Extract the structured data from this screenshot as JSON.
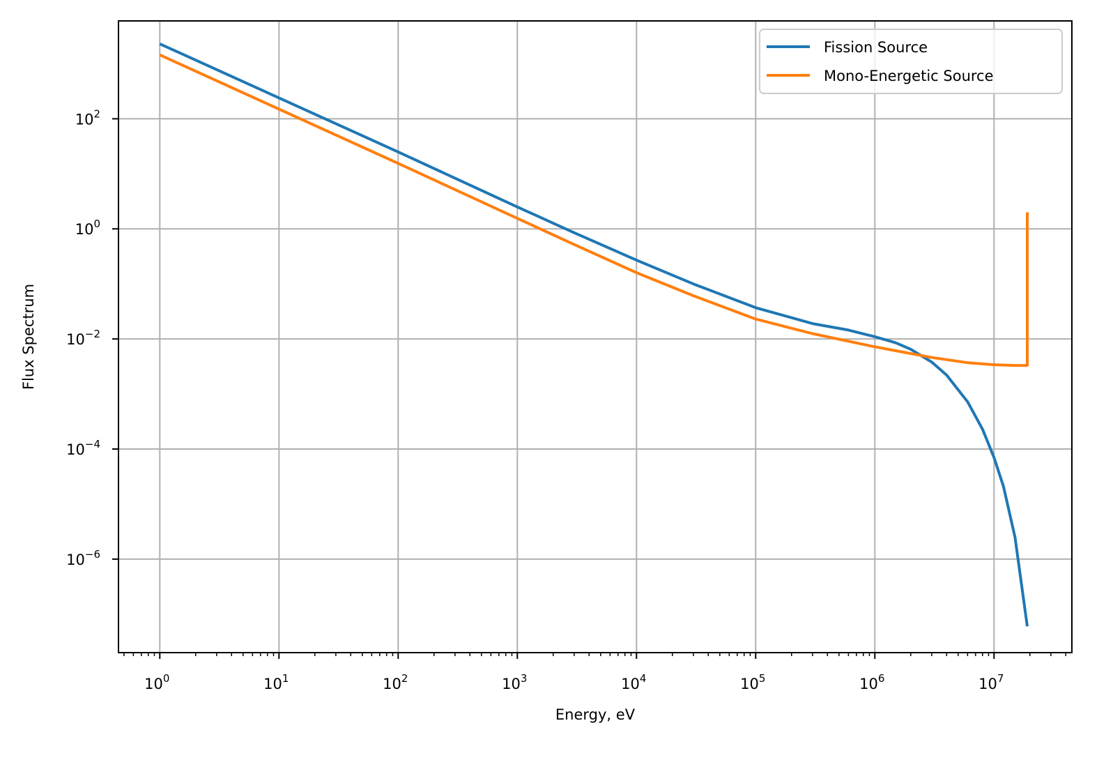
{
  "chart_data": {
    "type": "line",
    "title": "",
    "xlabel": "Energy, eV",
    "ylabel": "Flux Spectrum",
    "xscale": "log",
    "yscale": "log",
    "xlim": [
      0.45,
      45000000
    ],
    "ylim": [
      2e-08,
      6000
    ],
    "grid": true,
    "legend_position": "top-right",
    "x_ticks": [
      {
        "value": 1,
        "base": "10",
        "exp": "0"
      },
      {
        "value": 10,
        "base": "10",
        "exp": "1"
      },
      {
        "value": 100,
        "base": "10",
        "exp": "2"
      },
      {
        "value": 1000,
        "base": "10",
        "exp": "3"
      },
      {
        "value": 10000,
        "base": "10",
        "exp": "4"
      },
      {
        "value": 100000,
        "base": "10",
        "exp": "5"
      },
      {
        "value": 1000000,
        "base": "10",
        "exp": "6"
      },
      {
        "value": 10000000,
        "base": "10",
        "exp": "7"
      }
    ],
    "y_ticks": [
      {
        "value": 100,
        "base": "10",
        "exp": "2"
      },
      {
        "value": 1,
        "base": "10",
        "exp": "0"
      },
      {
        "value": 0.01,
        "base": "10",
        "exp": "−2"
      },
      {
        "value": 0.0001,
        "base": "10",
        "exp": "−4"
      },
      {
        "value": 1e-06,
        "base": "10",
        "exp": "−6"
      }
    ],
    "series": [
      {
        "name": "Fission Source",
        "color": "#1f77b4",
        "x": [
          1,
          10,
          100,
          1000,
          3000,
          10000,
          30000,
          100000,
          300000,
          600000,
          1000000,
          1500000,
          2000000,
          3000000,
          4000000,
          6000000,
          8000000,
          10000000,
          12000000,
          15000000,
          19000000
        ],
        "y": [
          2300,
          240,
          25,
          2.5,
          0.85,
          0.27,
          0.1,
          0.037,
          0.019,
          0.0145,
          0.011,
          0.0085,
          0.0065,
          0.0038,
          0.0022,
          0.00072,
          0.00023,
          7e-05,
          2.1e-05,
          2.5e-06,
          6e-08
        ]
      },
      {
        "name": "Mono-Energetic Source",
        "color": "#ff7f0e",
        "x": [
          1,
          10,
          100,
          1000,
          3000,
          10000,
          30000,
          100000,
          300000,
          1000000,
          3000000,
          6000000,
          10000000,
          15000000,
          19000000,
          19000000,
          19000000
        ],
        "y": [
          1450,
          150,
          15.5,
          1.55,
          0.52,
          0.16,
          0.061,
          0.023,
          0.0125,
          0.0072,
          0.0046,
          0.0037,
          0.0034,
          0.0033,
          0.0033,
          0.0033,
          2.0
        ]
      }
    ]
  }
}
